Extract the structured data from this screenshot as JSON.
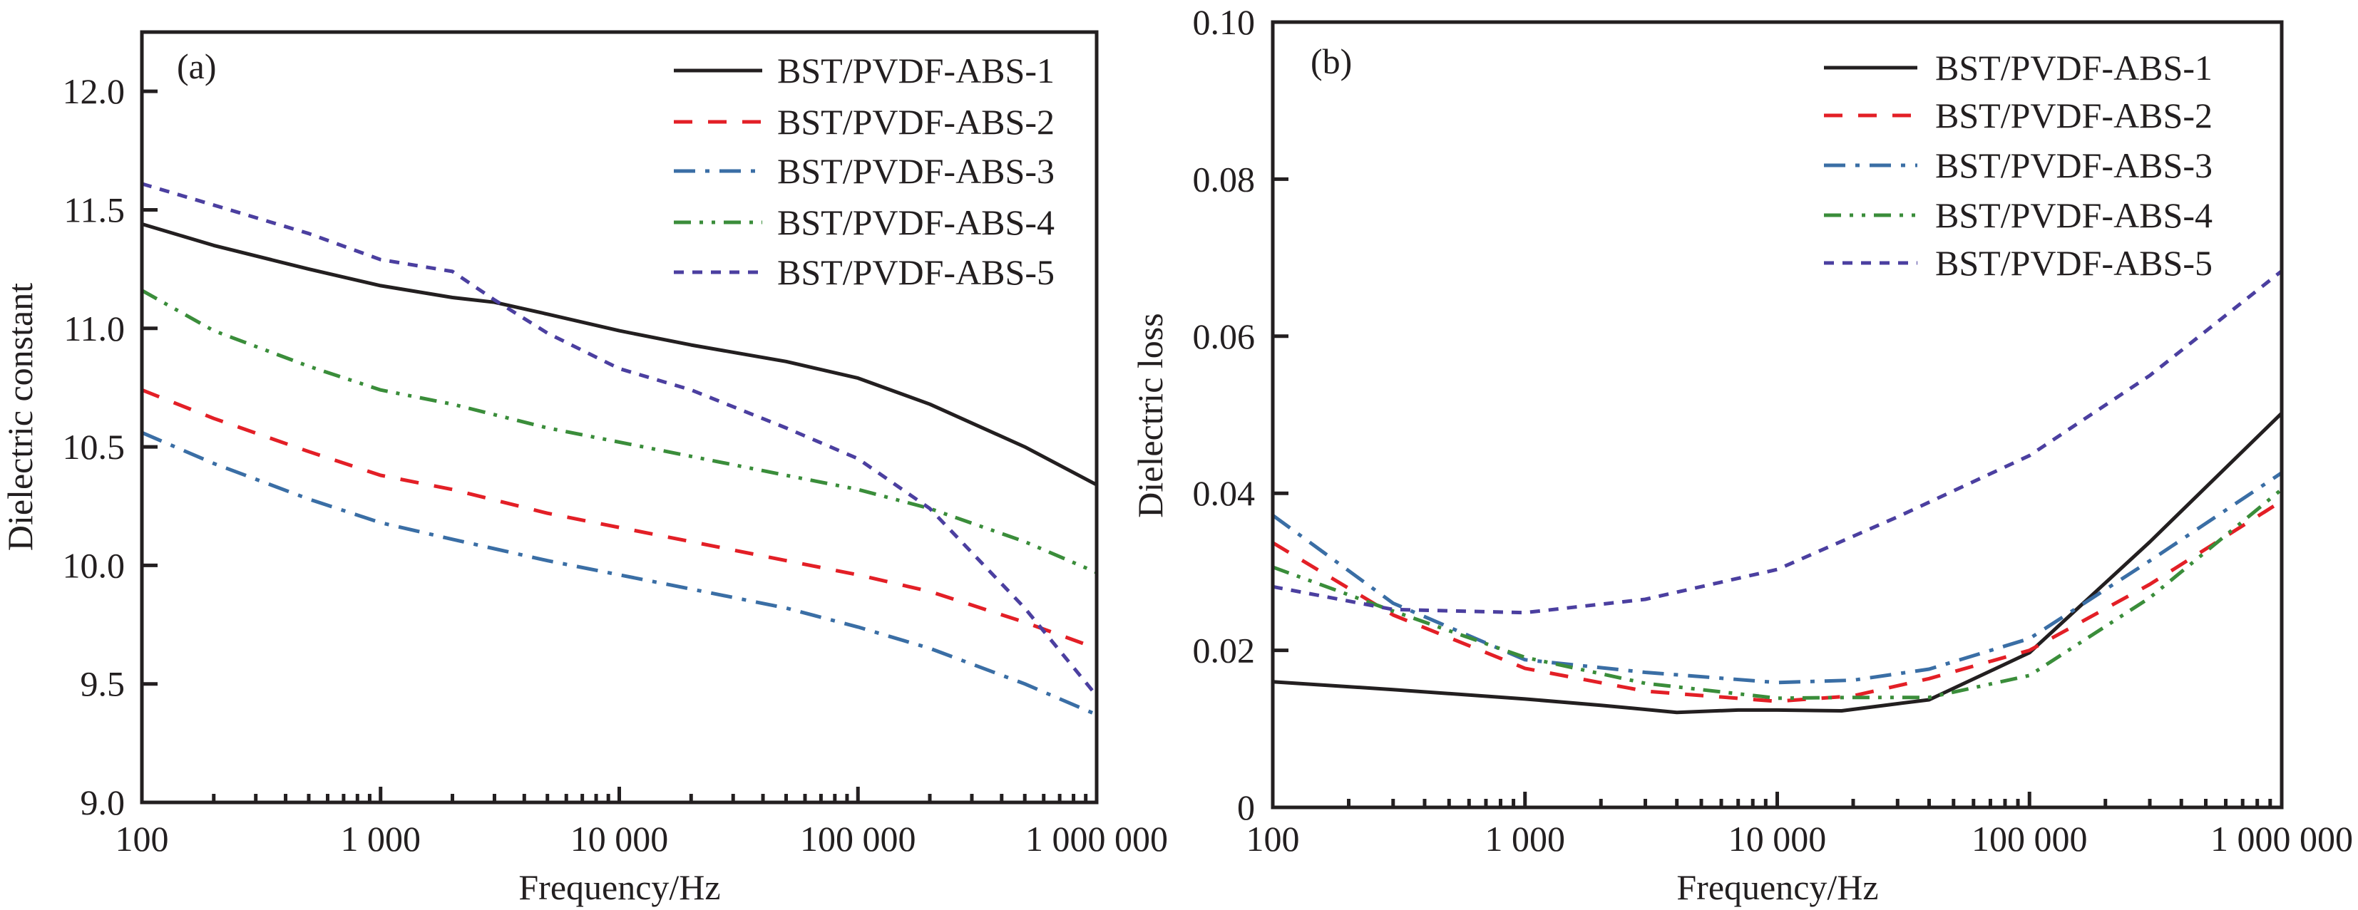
{
  "chart_data": [
    {
      "type": "line",
      "panel_label": "(a)",
      "title": "",
      "xlabel": "Frequency/Hz",
      "ylabel": "Dielectric constant",
      "xscale": "log",
      "xlim": [
        100,
        1000000
      ],
      "ylim": [
        9.0,
        12.25
      ],
      "xticks": [
        100,
        1000,
        10000,
        100000,
        1000000
      ],
      "xtick_labels": [
        "100",
        "1 000",
        "10 000",
        "100 000",
        "1 000 000"
      ],
      "yticks": [
        9.0,
        9.5,
        10.0,
        10.5,
        11.0,
        11.5,
        12.0
      ],
      "ytick_labels": [
        "9.0",
        "9.5",
        "10.0",
        "10.5",
        "11.0",
        "11.5",
        "12.0"
      ],
      "grid": false,
      "legend_position": "top-right",
      "series": [
        {
          "name": "BST/PVDF-ABS-1",
          "color": "#231f20",
          "dash": "solid",
          "x": [
            100,
            200,
            500,
            1000,
            2000,
            3000,
            5000,
            10000,
            20000,
            50000,
            100000,
            200000,
            500000,
            1000000
          ],
          "y": [
            11.44,
            11.35,
            11.25,
            11.18,
            11.13,
            11.11,
            11.06,
            10.99,
            10.93,
            10.86,
            10.79,
            10.68,
            10.5,
            10.34
          ]
        },
        {
          "name": "BST/PVDF-ABS-2",
          "color": "#e31f26",
          "dash": "dashed",
          "x": [
            100,
            200,
            500,
            1000,
            2000,
            5000,
            10000,
            20000,
            50000,
            100000,
            200000,
            500000,
            1000000
          ],
          "y": [
            10.74,
            10.62,
            10.48,
            10.38,
            10.32,
            10.22,
            10.16,
            10.1,
            10.02,
            9.96,
            9.89,
            9.76,
            9.65
          ]
        },
        {
          "name": "BST/PVDF-ABS-3",
          "color": "#3a6ea5",
          "dash": "dash-dot",
          "x": [
            100,
            200,
            500,
            1000,
            2000,
            5000,
            10000,
            20000,
            50000,
            100000,
            200000,
            500000,
            1000000
          ],
          "y": [
            10.56,
            10.43,
            10.28,
            10.18,
            10.11,
            10.02,
            9.96,
            9.9,
            9.82,
            9.74,
            9.65,
            9.5,
            9.37
          ]
        },
        {
          "name": "BST/PVDF-ABS-4",
          "color": "#3a8d3a",
          "dash": "dash-dot-dot",
          "x": [
            100,
            200,
            500,
            1000,
            2000,
            5000,
            10000,
            20000,
            50000,
            100000,
            200000,
            500000,
            1000000
          ],
          "y": [
            11.16,
            10.99,
            10.84,
            10.74,
            10.68,
            10.58,
            10.52,
            10.46,
            10.38,
            10.32,
            10.24,
            10.1,
            9.97
          ]
        },
        {
          "name": "BST/PVDF-ABS-5",
          "color": "#4b3fa0",
          "dash": "dotted",
          "x": [
            100,
            200,
            500,
            1000,
            2000,
            3000,
            5000,
            10000,
            20000,
            50000,
            100000,
            200000,
            500000,
            1000000
          ],
          "y": [
            11.61,
            11.52,
            11.4,
            11.29,
            11.24,
            11.12,
            10.98,
            10.83,
            10.74,
            10.58,
            10.45,
            10.24,
            9.82,
            9.45
          ]
        }
      ]
    },
    {
      "type": "line",
      "panel_label": "(b)",
      "title": "",
      "xlabel": "Frequency/Hz",
      "ylabel": "Dielectric loss",
      "xscale": "log",
      "xlim": [
        100,
        1000000
      ],
      "ylim": [
        0,
        0.1
      ],
      "xticks": [
        100,
        1000,
        10000,
        100000,
        1000000
      ],
      "xtick_labels": [
        "100",
        "1 000",
        "10 000",
        "100 000",
        "1 000 000"
      ],
      "yticks": [
        0,
        0.02,
        0.04,
        0.06,
        0.08,
        0.1
      ],
      "ytick_labels": [
        "0",
        "0.02",
        "0.04",
        "0.06",
        "0.08",
        "0.10"
      ],
      "grid": false,
      "legend_position": "top-right",
      "series": [
        {
          "name": "BST/PVDF-ABS-1",
          "color": "#231f20",
          "dash": "solid",
          "x": [
            100,
            300,
            1000,
            2000,
            4000,
            7000,
            10000,
            18000,
            30000,
            40000,
            100000,
            300000,
            1000000
          ],
          "y": [
            0.016,
            0.015,
            0.0138,
            0.013,
            0.0121,
            0.0124,
            0.0124,
            0.0123,
            0.0132,
            0.0137,
            0.0197,
            0.0338,
            0.0502
          ]
        },
        {
          "name": "BST/PVDF-ABS-2",
          "color": "#e31f26",
          "dash": "dashed",
          "x": [
            100,
            300,
            1000,
            3000,
            10000,
            20000,
            40000,
            100000,
            300000,
            1000000
          ],
          "y": [
            0.0337,
            0.0245,
            0.0177,
            0.0148,
            0.0135,
            0.0142,
            0.0164,
            0.02,
            0.0284,
            0.039
          ]
        },
        {
          "name": "BST/PVDF-ABS-3",
          "color": "#3a6ea5",
          "dash": "dash-dot",
          "x": [
            100,
            300,
            1000,
            3000,
            10000,
            20000,
            40000,
            100000,
            300000,
            1000000
          ],
          "y": [
            0.0372,
            0.026,
            0.0188,
            0.0172,
            0.0159,
            0.0162,
            0.0176,
            0.0215,
            0.0314,
            0.0426
          ]
        },
        {
          "name": "BST/PVDF-ABS-4",
          "color": "#3a8d3a",
          "dash": "dash-dot-dot",
          "x": [
            100,
            300,
            1000,
            3000,
            10000,
            20000,
            40000,
            100000,
            300000,
            1000000
          ],
          "y": [
            0.0306,
            0.025,
            0.0191,
            0.0158,
            0.0139,
            0.014,
            0.014,
            0.0168,
            0.0267,
            0.0405
          ]
        },
        {
          "name": "BST/PVDF-ABS-5",
          "color": "#4b3fa0",
          "dash": "dotted",
          "x": [
            100,
            300,
            1000,
            3000,
            10000,
            30000,
            100000,
            300000,
            1000000
          ],
          "y": [
            0.0281,
            0.0252,
            0.0248,
            0.0265,
            0.0303,
            0.037,
            0.0448,
            0.055,
            0.0683
          ]
        }
      ]
    }
  ]
}
